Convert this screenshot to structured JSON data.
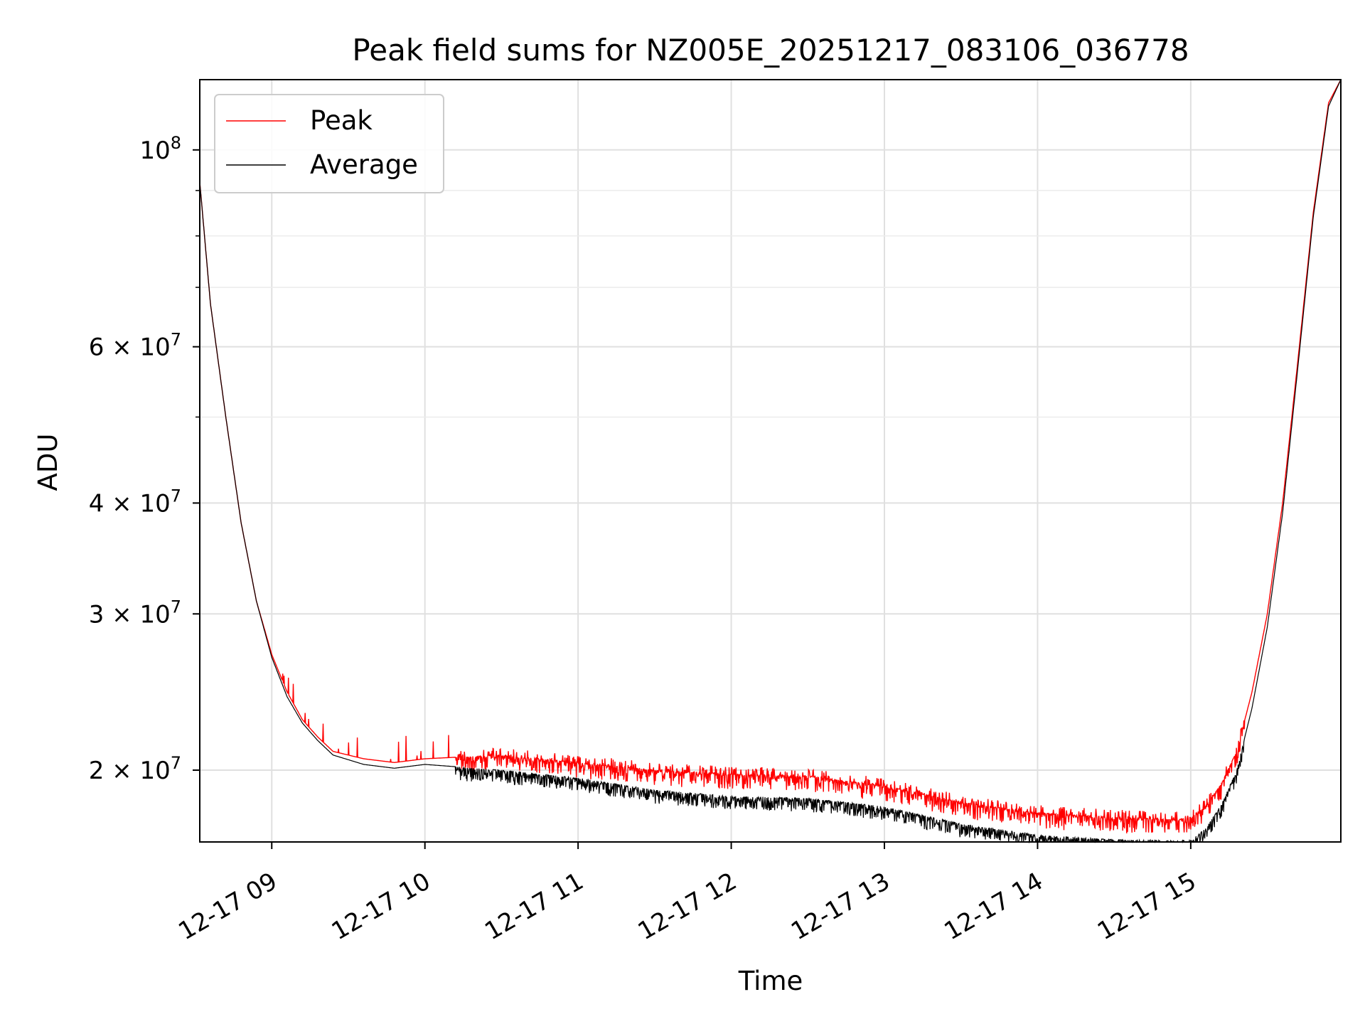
{
  "chart_data": {
    "type": "line",
    "title": "Peak field sums for NZ005E_20251217_083106_036778",
    "xlabel": "Time",
    "ylabel": "ADU",
    "yscale": "log",
    "xlim": [
      8.53,
      15.98
    ],
    "ylim": [
      16600000,
      120000000
    ],
    "grid": true,
    "legend_position": "top-left",
    "x_ticks": [
      {
        "value": 9,
        "label": "12-17 09"
      },
      {
        "value": 10,
        "label": "12-17 10"
      },
      {
        "value": 11,
        "label": "12-17 11"
      },
      {
        "value": 12,
        "label": "12-17 12"
      },
      {
        "value": 13,
        "label": "12-17 13"
      },
      {
        "value": 14,
        "label": "12-17 14"
      },
      {
        "value": 15,
        "label": "12-17 15"
      }
    ],
    "y_major_ticks": [
      {
        "value": 100000000,
        "label": "10",
        "exp": "8"
      },
      {
        "value": 60000000,
        "label": "6 × 10",
        "exp": "7"
      },
      {
        "value": 40000000,
        "label": "4 × 10",
        "exp": "7"
      },
      {
        "value": 30000000,
        "label": "3 × 10",
        "exp": "7"
      },
      {
        "value": 20000000,
        "label": "2 × 10",
        "exp": "7"
      }
    ],
    "y_minor_ticks": [
      90000000,
      80000000,
      70000000,
      50000000
    ],
    "series": [
      {
        "name": "Peak",
        "color": "#ff0000",
        "x": [
          8.53,
          8.6,
          8.7,
          8.8,
          8.9,
          9.0,
          9.1,
          9.2,
          9.3,
          9.4,
          9.6,
          9.8,
          10.0,
          10.5,
          11.0,
          11.5,
          12.0,
          12.5,
          13.0,
          13.5,
          14.0,
          14.5,
          14.9,
          15.0,
          15.1,
          15.2,
          15.3,
          15.4,
          15.5,
          15.6,
          15.7,
          15.8,
          15.9,
          15.98
        ],
        "values": [
          92000000,
          67000000,
          50000000,
          38000000,
          31000000,
          27000000,
          24500000,
          22800000,
          21800000,
          21000000,
          20600000,
          20400000,
          20600000,
          20800000,
          20400000,
          20000000,
          19800000,
          19700000,
          19200000,
          18400000,
          17900000,
          17700000,
          17600000,
          17700000,
          18200000,
          19300000,
          21000000,
          24500000,
          30000000,
          40000000,
          58000000,
          85000000,
          113000000,
          120000000
        ]
      },
      {
        "name": "Average",
        "color": "#000000",
        "x": [
          8.53,
          8.6,
          8.7,
          8.8,
          8.9,
          9.0,
          9.1,
          9.2,
          9.3,
          9.4,
          9.6,
          9.8,
          10.0,
          10.5,
          11.0,
          11.5,
          12.0,
          12.5,
          13.0,
          13.5,
          14.0,
          14.5,
          14.9,
          15.0,
          15.1,
          15.2,
          15.3,
          15.4,
          15.5,
          15.6,
          15.7,
          15.8,
          15.9,
          15.98
        ],
        "values": [
          92000000,
          67000000,
          50000000,
          38000000,
          31000000,
          26800000,
          24200000,
          22600000,
          21600000,
          20800000,
          20300000,
          20100000,
          20300000,
          20000000,
          19600000,
          19000000,
          18700000,
          18600000,
          18200000,
          17400000,
          16900000,
          16700000,
          16650000,
          16700000,
          17200000,
          18300000,
          20000000,
          23500000,
          29000000,
          39000000,
          57000000,
          84000000,
          112000000,
          120000000
        ]
      }
    ]
  }
}
